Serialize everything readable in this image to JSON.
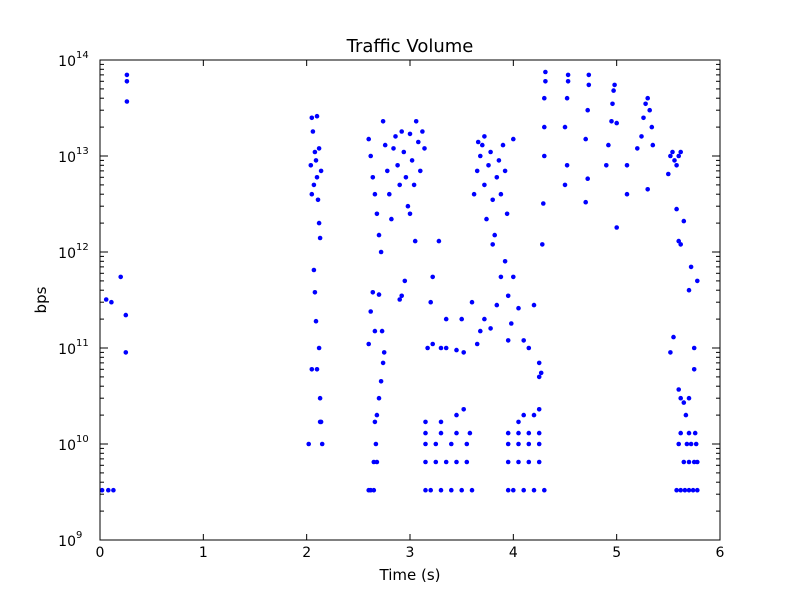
{
  "chart_data": {
    "type": "scatter",
    "title": "Traffic Volume",
    "xlabel": "Time (s)",
    "ylabel": "bps",
    "xlim": [
      0,
      6
    ],
    "ylim": [
      1000000000.0,
      100000000000000.0
    ],
    "yscale": "log",
    "grid": false,
    "legend": "none",
    "marker_color": "#0000ff",
    "x_ticks": [
      {
        "value": 0,
        "label": "0"
      },
      {
        "value": 1,
        "label": "1"
      },
      {
        "value": 2,
        "label": "2"
      },
      {
        "value": 3,
        "label": "3"
      },
      {
        "value": 4,
        "label": "4"
      },
      {
        "value": 5,
        "label": "5"
      },
      {
        "value": 6,
        "label": "6"
      }
    ],
    "y_ticks": [
      {
        "value": 1000000000.0,
        "base": "10",
        "exp": "9"
      },
      {
        "value": 10000000000.0,
        "base": "10",
        "exp": "10"
      },
      {
        "value": 100000000000.0,
        "base": "10",
        "exp": "11"
      },
      {
        "value": 1000000000000.0,
        "base": "10",
        "exp": "12"
      },
      {
        "value": 10000000000000.0,
        "base": "10",
        "exp": "13"
      },
      {
        "value": 100000000000000.0,
        "base": "10",
        "exp": "14"
      }
    ],
    "series": [
      {
        "points": [
          [
            0.02,
            3300000000.0
          ],
          [
            0.08,
            3300000000.0
          ],
          [
            0.13,
            3300000000.0
          ],
          [
            0.06,
            320000000000.0
          ],
          [
            0.11,
            300000000000.0
          ],
          [
            0.2,
            550000000000.0
          ],
          [
            0.25,
            220000000000.0
          ],
          [
            0.25,
            90000000000.0
          ],
          [
            0.26,
            70000000000000.0
          ],
          [
            0.26,
            60000000000000.0
          ],
          [
            0.26,
            37000000000000.0
          ],
          [
            2.02,
            10000000000.0
          ],
          [
            2.05,
            60000000000.0
          ],
          [
            2.07,
            650000000000.0
          ],
          [
            2.08,
            380000000000.0
          ],
          [
            2.09,
            190000000000.0
          ],
          [
            2.1,
            60000000000.0
          ],
          [
            2.12,
            100000000000.0
          ],
          [
            2.13,
            30000000000.0
          ],
          [
            2.13,
            17000000000.0
          ],
          [
            2.14,
            17000000000.0
          ],
          [
            2.15,
            10000000000.0
          ],
          [
            2.05,
            25000000000000.0
          ],
          [
            2.06,
            18000000000000.0
          ],
          [
            2.08,
            11000000000000.0
          ],
          [
            2.09,
            9000000000000.0
          ],
          [
            2.1,
            6000000000000.0
          ],
          [
            2.11,
            3500000000000.0
          ],
          [
            2.12,
            2000000000000.0
          ],
          [
            2.13,
            1400000000000.0
          ],
          [
            2.04,
            8000000000000.0
          ],
          [
            2.07,
            5000000000000.0
          ],
          [
            2.1,
            26000000000000.0
          ],
          [
            2.12,
            12000000000000.0
          ],
          [
            2.14,
            7000000000000.0
          ],
          [
            2.05,
            4000000000000.0
          ],
          [
            2.6,
            3300000000.0
          ],
          [
            2.62,
            3300000000.0
          ],
          [
            2.65,
            3300000000.0
          ],
          [
            2.65,
            6500000000.0
          ],
          [
            2.68,
            6500000000.0
          ],
          [
            2.67,
            10000000000.0
          ],
          [
            2.66,
            17000000000.0
          ],
          [
            2.68,
            20000000000.0
          ],
          [
            2.7,
            30000000000.0
          ],
          [
            2.72,
            45000000000.0
          ],
          [
            2.74,
            70000000000.0
          ],
          [
            2.75,
            90000000000.0
          ],
          [
            2.6,
            110000000000.0
          ],
          [
            2.62,
            240000000000.0
          ],
          [
            2.64,
            380000000000.0
          ],
          [
            2.66,
            150000000000.0
          ],
          [
            2.7,
            360000000000.0
          ],
          [
            2.73,
            150000000000.0
          ],
          [
            2.6,
            15000000000000.0
          ],
          [
            2.62,
            10000000000000.0
          ],
          [
            2.64,
            6000000000000.0
          ],
          [
            2.66,
            4000000000000.0
          ],
          [
            2.68,
            2500000000000.0
          ],
          [
            2.7,
            1500000000000.0
          ],
          [
            2.72,
            1000000000000.0
          ],
          [
            2.74,
            23000000000000.0
          ],
          [
            2.76,
            13000000000000.0
          ],
          [
            2.78,
            7000000000000.0
          ],
          [
            2.8,
            4000000000000.0
          ],
          [
            2.82,
            2200000000000.0
          ],
          [
            2.84,
            12000000000000.0
          ],
          [
            2.86,
            16000000000000.0
          ],
          [
            2.88,
            8000000000000.0
          ],
          [
            2.9,
            5000000000000.0
          ],
          [
            2.92,
            18000000000000.0
          ],
          [
            2.94,
            11000000000000.0
          ],
          [
            2.96,
            6000000000000.0
          ],
          [
            2.98,
            3000000000000.0
          ],
          [
            3.0,
            17000000000000.0
          ],
          [
            3.02,
            9000000000000.0
          ],
          [
            3.04,
            5000000000000.0
          ],
          [
            3.06,
            23000000000000.0
          ],
          [
            3.08,
            14000000000000.0
          ],
          [
            3.1,
            7000000000000.0
          ],
          [
            3.12,
            18000000000000.0
          ],
          [
            3.14,
            12000000000000.0
          ],
          [
            2.9,
            320000000000.0
          ],
          [
            2.95,
            500000000000.0
          ],
          [
            3.0,
            2500000000000.0
          ],
          [
            3.05,
            1300000000000.0
          ],
          [
            2.92,
            350000000000.0
          ],
          [
            3.15,
            3300000000.0
          ],
          [
            3.2,
            3300000000.0
          ],
          [
            3.3,
            3300000000.0
          ],
          [
            3.4,
            3300000000.0
          ],
          [
            3.5,
            3300000000.0
          ],
          [
            3.6,
            3300000000.0
          ],
          [
            3.15,
            6500000000.0
          ],
          [
            3.25,
            6500000000.0
          ],
          [
            3.35,
            6500000000.0
          ],
          [
            3.45,
            6500000000.0
          ],
          [
            3.55,
            6500000000.0
          ],
          [
            3.15,
            10000000000.0
          ],
          [
            3.25,
            10000000000.0
          ],
          [
            3.4,
            10000000000.0
          ],
          [
            3.55,
            10000000000.0
          ],
          [
            3.15,
            13000000000.0
          ],
          [
            3.3,
            13000000000.0
          ],
          [
            3.45,
            13000000000.0
          ],
          [
            3.58,
            13000000000.0
          ],
          [
            3.15,
            17000000000.0
          ],
          [
            3.3,
            17000000000.0
          ],
          [
            3.45,
            20000000000.0
          ],
          [
            3.52,
            23000000000.0
          ],
          [
            3.17,
            100000000000.0
          ],
          [
            3.22,
            110000000000.0
          ],
          [
            3.3,
            100000000000.0
          ],
          [
            3.35,
            100000000000.0
          ],
          [
            3.45,
            95000000000.0
          ],
          [
            3.52,
            90000000000.0
          ],
          [
            3.2,
            300000000000.0
          ],
          [
            3.22,
            550000000000.0
          ],
          [
            3.28,
            1300000000000.0
          ],
          [
            3.35,
            200000000000.0
          ],
          [
            3.5,
            200000000000.0
          ],
          [
            3.6,
            300000000000.0
          ],
          [
            3.65,
            110000000000.0
          ],
          [
            3.68,
            150000000000.0
          ],
          [
            3.72,
            200000000000.0
          ],
          [
            3.78,
            160000000000.0
          ],
          [
            3.84,
            280000000000.0
          ],
          [
            3.62,
            4000000000000.0
          ],
          [
            3.65,
            7000000000000.0
          ],
          [
            3.68,
            10000000000000.0
          ],
          [
            3.7,
            13000000000000.0
          ],
          [
            3.72,
            5000000000000.0
          ],
          [
            3.74,
            2200000000000.0
          ],
          [
            3.76,
            8000000000000.0
          ],
          [
            3.78,
            11000000000000.0
          ],
          [
            3.8,
            3500000000000.0
          ],
          [
            3.82,
            1500000000000.0
          ],
          [
            3.84,
            6000000000000.0
          ],
          [
            3.86,
            9000000000000.0
          ],
          [
            3.88,
            4000000000000.0
          ],
          [
            3.9,
            13000000000000.0
          ],
          [
            3.92,
            7000000000000.0
          ],
          [
            3.94,
            2500000000000.0
          ],
          [
            3.66,
            14000000000000.0
          ],
          [
            3.72,
            16000000000000.0
          ],
          [
            3.8,
            1200000000000.0
          ],
          [
            3.88,
            550000000000.0
          ],
          [
            3.92,
            800000000000.0
          ],
          [
            3.95,
            350000000000.0
          ],
          [
            3.95,
            120000000000.0
          ],
          [
            3.98,
            180000000000.0
          ],
          [
            4.0,
            550000000000.0
          ],
          [
            4.0,
            15000000000000.0
          ],
          [
            3.95,
            3300000000.0
          ],
          [
            4.0,
            3300000000.0
          ],
          [
            4.1,
            3300000000.0
          ],
          [
            4.2,
            3300000000.0
          ],
          [
            4.3,
            3300000000.0
          ],
          [
            3.95,
            6500000000.0
          ],
          [
            4.05,
            6500000000.0
          ],
          [
            4.15,
            6500000000.0
          ],
          [
            4.25,
            6500000000.0
          ],
          [
            3.95,
            10000000000.0
          ],
          [
            4.05,
            10000000000.0
          ],
          [
            4.15,
            10000000000.0
          ],
          [
            4.25,
            10000000000.0
          ],
          [
            3.95,
            13000000000.0
          ],
          [
            4.05,
            13000000000.0
          ],
          [
            4.15,
            13000000000.0
          ],
          [
            4.25,
            13000000000.0
          ],
          [
            4.05,
            17000000000.0
          ],
          [
            4.1,
            20000000000.0
          ],
          [
            4.2,
            20000000000.0
          ],
          [
            4.25,
            23000000000.0
          ],
          [
            4.05,
            260000000000.0
          ],
          [
            4.1,
            120000000000.0
          ],
          [
            4.15,
            100000000000.0
          ],
          [
            4.2,
            280000000000.0
          ],
          [
            4.25,
            50000000000.0
          ],
          [
            4.27,
            55000000000.0
          ],
          [
            4.25,
            70000000000.0
          ],
          [
            4.28,
            1200000000000.0
          ],
          [
            4.29,
            3200000000000.0
          ],
          [
            4.3,
            10000000000000.0
          ],
          [
            4.3,
            20000000000000.0
          ],
          [
            4.3,
            40000000000000.0
          ],
          [
            4.31,
            60000000000000.0
          ],
          [
            4.31,
            75000000000000.0
          ],
          [
            4.5,
            5000000000000.0
          ],
          [
            4.52,
            8000000000000.0
          ],
          [
            4.5,
            20000000000000.0
          ],
          [
            4.52,
            40000000000000.0
          ],
          [
            4.53,
            60000000000000.0
          ],
          [
            4.53,
            70000000000000.0
          ],
          [
            4.7,
            3300000000000.0
          ],
          [
            4.72,
            5800000000000.0
          ],
          [
            4.7,
            15000000000000.0
          ],
          [
            4.72,
            30000000000000.0
          ],
          [
            4.73,
            55000000000000.0
          ],
          [
            4.73,
            70000000000000.0
          ],
          [
            4.9,
            8000000000000.0
          ],
          [
            4.92,
            13000000000000.0
          ],
          [
            4.95,
            23000000000000.0
          ],
          [
            4.96,
            35000000000000.0
          ],
          [
            4.97,
            48000000000000.0
          ],
          [
            4.98,
            55000000000000.0
          ],
          [
            5.0,
            1800000000000.0
          ],
          [
            5.0,
            22000000000000.0
          ],
          [
            5.1,
            4000000000000.0
          ],
          [
            5.1,
            8000000000000.0
          ],
          [
            5.3,
            4500000000000.0
          ],
          [
            5.35,
            13000000000000.0
          ],
          [
            5.2,
            12000000000000.0
          ],
          [
            5.24,
            16000000000000.0
          ],
          [
            5.26,
            25000000000000.0
          ],
          [
            5.28,
            35000000000000.0
          ],
          [
            5.3,
            40000000000000.0
          ],
          [
            5.32,
            30000000000000.0
          ],
          [
            5.34,
            20000000000000.0
          ],
          [
            5.5,
            6500000000000.0
          ],
          [
            5.52,
            10000000000000.0
          ],
          [
            5.54,
            11000000000000.0
          ],
          [
            5.56,
            9000000000000.0
          ],
          [
            5.58,
            8000000000000.0
          ],
          [
            5.6,
            10000000000000.0
          ],
          [
            5.62,
            11000000000000.0
          ],
          [
            5.58,
            2800000000000.0
          ],
          [
            5.6,
            1300000000000.0
          ],
          [
            5.62,
            1200000000000.0
          ],
          [
            5.65,
            2100000000000.0
          ],
          [
            5.7,
            400000000000.0
          ],
          [
            5.72,
            700000000000.0
          ],
          [
            5.52,
            90000000000.0
          ],
          [
            5.55,
            130000000000.0
          ],
          [
            5.6,
            37000000000.0
          ],
          [
            5.62,
            30000000000.0
          ],
          [
            5.65,
            27000000000.0
          ],
          [
            5.67,
            20000000000.0
          ],
          [
            5.7,
            30000000000.0
          ],
          [
            5.75,
            60000000000.0
          ],
          [
            5.75,
            100000000000.0
          ],
          [
            5.78,
            500000000000.0
          ],
          [
            5.58,
            3300000000.0
          ],
          [
            5.62,
            3300000000.0
          ],
          [
            5.66,
            3300000000.0
          ],
          [
            5.7,
            3300000000.0
          ],
          [
            5.74,
            3300000000.0
          ],
          [
            5.78,
            3300000000.0
          ],
          [
            5.65,
            6500000000.0
          ],
          [
            5.7,
            6500000000.0
          ],
          [
            5.75,
            6500000000.0
          ],
          [
            5.78,
            6500000000.0
          ],
          [
            5.6,
            10000000000.0
          ],
          [
            5.68,
            10000000000.0
          ],
          [
            5.72,
            10000000000.0
          ],
          [
            5.77,
            10000000000.0
          ],
          [
            5.62,
            13000000000.0
          ],
          [
            5.7,
            13000000000.0
          ],
          [
            5.76,
            13000000000.0
          ]
        ]
      }
    ]
  }
}
